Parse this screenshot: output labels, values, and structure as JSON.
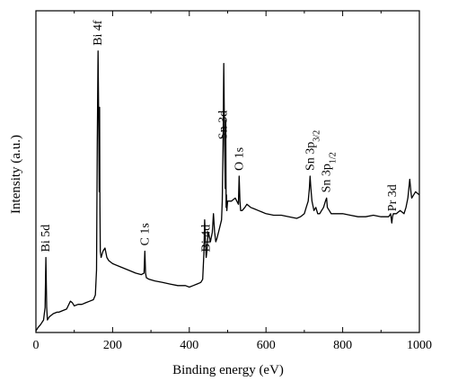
{
  "chart_data": {
    "type": "line",
    "title": "",
    "xlabel": "Binding energy (eV)",
    "ylabel": "Intensity (a.u.)",
    "xlim": [
      0,
      1000
    ],
    "ylim": [
      0,
      100
    ],
    "xticks": [
      "0",
      "200",
      "400",
      "600",
      "800",
      "1000"
    ],
    "grid": false,
    "legend": "none",
    "series": [
      {
        "x": [
          0,
          5,
          12,
          20,
          24,
          26,
          28,
          30,
          35,
          45,
          55,
          60,
          70,
          80,
          90,
          95,
          100,
          110,
          120,
          130,
          140,
          150,
          155,
          158,
          160,
          162,
          164,
          165,
          166,
          167,
          168,
          170,
          175,
          180,
          185,
          190,
          200,
          220,
          240,
          260,
          275,
          282,
          284,
          286,
          288,
          295,
          310,
          330,
          350,
          370,
          390,
          400,
          410,
          420,
          430,
          435,
          438,
          440,
          442,
          444,
          446,
          448,
          450,
          455,
          460,
          463,
          466,
          469,
          472,
          476,
          480,
          484,
          486,
          488,
          490,
          492,
          494,
          495,
          496,
          497,
          498,
          500,
          505,
          510,
          520,
          528,
          530,
          532,
          534,
          538,
          545,
          550,
          560,
          570,
          580,
          590,
          600,
          620,
          640,
          660,
          680,
          690,
          700,
          705,
          710,
          713,
          715,
          717,
          720,
          725,
          730,
          735,
          740,
          745,
          750,
          755,
          758,
          760,
          765,
          770,
          780,
          800,
          820,
          840,
          860,
          880,
          900,
          910,
          920,
          925,
          928,
          930,
          932,
          935,
          940,
          950,
          960,
          965,
          970,
          975,
          978,
          980,
          985,
          990,
          1000
        ],
        "values": [
          0.5,
          1.5,
          2.5,
          4,
          8,
          24,
          8,
          4,
          5,
          6,
          6.5,
          6.5,
          7,
          7.5,
          10,
          9.5,
          8.5,
          9,
          9,
          9.5,
          10,
          10.5,
          12,
          20,
          60,
          90,
          65,
          45,
          72,
          40,
          26,
          24,
          26,
          27,
          24,
          23,
          22,
          21,
          20,
          19,
          18.5,
          19,
          26,
          19,
          17.5,
          17,
          16.5,
          16,
          15.5,
          15,
          15,
          14.5,
          15,
          15.5,
          16,
          17,
          25,
          36,
          30,
          24,
          26,
          30,
          32,
          29,
          32,
          38,
          32,
          29,
          30,
          32,
          34,
          36,
          42,
          60,
          86,
          60,
          46,
          68,
          40,
          44,
          39,
          42,
          42,
          42,
          43,
          41,
          50,
          42,
          39,
          39,
          40,
          41,
          40,
          39.5,
          39,
          38.5,
          38,
          37.5,
          37.5,
          37,
          36.5,
          37,
          38,
          40,
          42,
          46,
          50,
          46,
          42,
          39,
          40,
          38,
          38,
          39,
          40,
          42,
          43,
          40,
          39,
          38,
          38,
          38,
          37.5,
          37,
          37,
          37.5,
          37,
          37,
          37,
          38,
          35,
          37,
          38,
          38,
          38,
          39,
          38,
          40,
          43,
          49,
          45,
          43,
          44,
          45,
          44
        ]
      }
    ],
    "annotations": [
      {
        "label": "Bi 5d",
        "x": 26
      },
      {
        "label": "Bi 4f",
        "x": 162
      },
      {
        "label": "C 1s",
        "x": 284
      },
      {
        "label": "Bi 4d",
        "x": 444
      },
      {
        "label": "Sn 3d",
        "x": 488
      },
      {
        "label": "O 1s",
        "x": 530
      },
      {
        "label": "Sn 3p3/2",
        "x": 715
      },
      {
        "label": "Sn 3p1/2",
        "x": 758
      },
      {
        "label": "Pr 3d",
        "x": 930
      }
    ]
  }
}
